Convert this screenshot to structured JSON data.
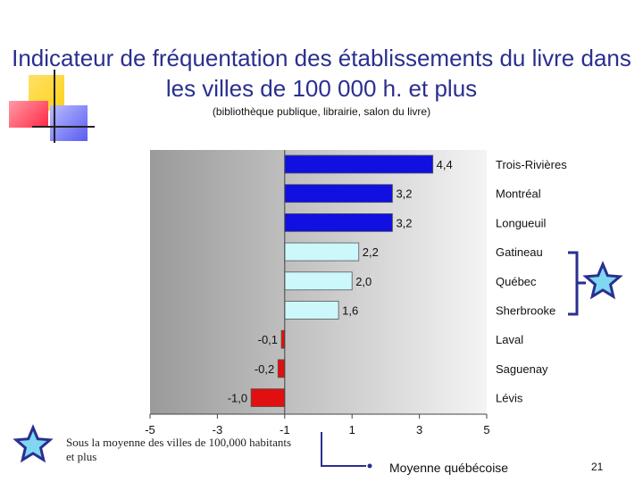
{
  "slide": {
    "title": "Indicateur de fréquentation des établissements du livre dans les villes de 100 000 h. et plus",
    "subtitle": "(bibliothèque publique, librairie, salon du livre)",
    "note": "Sous la moyenne des villes de 100,000 habitants et plus",
    "average_label": "Moyenne québécoise",
    "page_number": "21",
    "icons": [
      "star-icon",
      "bracket-icon",
      "arrow-icon"
    ]
  },
  "colors": {
    "above_high": "#1010e0",
    "above_mid": "#ccf7fb",
    "below": "#e01010",
    "plot_background_start": "#9a9a9a",
    "plot_background_end": "#f4f4f4",
    "title": "#2a2f8f",
    "bracket": "#2a2f8f"
  },
  "chart_data": {
    "type": "bar",
    "orientation": "horizontal",
    "categories": [
      "Trois-Rivières",
      "Montréal",
      "Longueuil",
      "Gatineau",
      "Québec",
      "Sherbrooke",
      "Laval",
      "Saguenay",
      "Lévis"
    ],
    "values": [
      4.4,
      3.2,
      3.2,
      2.2,
      2.0,
      1.6,
      -0.1,
      -0.2,
      -1.0
    ],
    "value_labels": [
      "4,4",
      "3,2",
      "3,2",
      "2,2",
      "2,0",
      "1,6",
      "-0,1",
      "-0,2",
      "-1,0"
    ],
    "bar_groups": [
      "above_high",
      "above_high",
      "above_high",
      "above_mid",
      "above_mid",
      "above_mid",
      "below",
      "below",
      "below"
    ],
    "xlim": [
      -5,
      5
    ],
    "xticks": [
      -5,
      -3,
      -1,
      1,
      3,
      5
    ],
    "title": "",
    "xlabel": "",
    "ylabel": "",
    "grid": false,
    "legend": false
  }
}
